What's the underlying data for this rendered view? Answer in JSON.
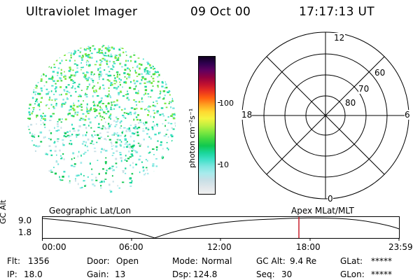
{
  "header": {
    "instrument": "Ultraviolet Imager",
    "date": "09 Oct 00",
    "time": "17:17:13 UT"
  },
  "colorbar": {
    "label": "photon cm⁻²s⁻¹",
    "ticks": [
      "100",
      "10"
    ],
    "scale": "log",
    "colors": [
      "#f0f0f0",
      "#dfe6ea",
      "#c8dfe6",
      "#a8ebec",
      "#7fe6e0",
      "#40e0c8",
      "#19d69a",
      "#10c850",
      "#40d840",
      "#7ee840",
      "#c0f040",
      "#f4f440",
      "#ffd830",
      "#ffa020",
      "#ff6010",
      "#e83020",
      "#c01030",
      "#900040",
      "#600060",
      "#300050",
      "#100020"
    ]
  },
  "polar_grid": {
    "mlt_labels": {
      "top": "12",
      "left": "18",
      "right": "6",
      "bottom": "0"
    },
    "mlat_labels": [
      "80",
      "70",
      "60"
    ]
  },
  "timeline": {
    "left_caption": "Geographic Lat/Lon",
    "right_caption": "Apex MLat/MLT",
    "y_axis_label": "GC Alt",
    "y_ticks": [
      "9.0",
      "1.8"
    ],
    "x_ticks": [
      "00:00",
      "06:00",
      "12:00",
      "18:00",
      "23:59"
    ],
    "current_time_marker": "17:17"
  },
  "status": {
    "flt_label": "Flt:",
    "flt_value": "1356",
    "ip_label": "IP:",
    "ip_value": "18.0",
    "door_label": "Door:",
    "door_value": "Open",
    "gain_label": "Gain:",
    "gain_value": "13",
    "mode_label": "Mode:",
    "mode_value": "Normal",
    "dsp_label": "Dsp:",
    "dsp_value": "124.8",
    "gcalt_label": "GC Alt:",
    "gcalt_value": "9.4 Re",
    "seq_label": "Seq:",
    "seq_value": "30",
    "glat_label": "GLat:",
    "glat_value": "*****",
    "glon_label": "GLon:",
    "glon_value": "*****"
  }
}
